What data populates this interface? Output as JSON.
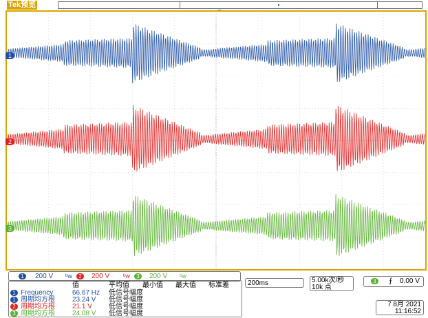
{
  "brand": "Tek",
  "mode": "预览",
  "trigger_marker": "▼",
  "channels": [
    {
      "number": "1",
      "color": "#1e4fa3",
      "scale": "200 V",
      "bw": "ᵇw"
    },
    {
      "number": "2",
      "color": "#e02020",
      "scale": "200 V",
      "bw": "ᵇw"
    },
    {
      "number": "3",
      "color": "#5ab030",
      "scale": "200 V",
      "bw": "ᵇw"
    }
  ],
  "measurements": {
    "headers": [
      "值",
      "平均值",
      "最小值",
      "最大值",
      "标准差"
    ],
    "rows": [
      {
        "channel": "1",
        "name": "Frequency",
        "value": "66.67 Hz",
        "status": "低信号幅度"
      },
      {
        "channel": "1",
        "name": "周期均方根",
        "value": "23.24 V",
        "status": "低信号幅度"
      },
      {
        "channel": "2",
        "name": "周期均方根",
        "value": "21.1 V",
        "status": "低信号幅度"
      },
      {
        "channel": "3",
        "name": "周期均方根",
        "value": "24.08 V",
        "status": "低信号幅度"
      }
    ]
  },
  "timebase": "200ms",
  "sample_rate": "5.00k次/秒",
  "record_length": "10k 点",
  "trigger": {
    "channel": "3",
    "slope": "⨍",
    "level": "0.00 V"
  },
  "date": "7 8月  2021",
  "time": "11:16:52"
}
